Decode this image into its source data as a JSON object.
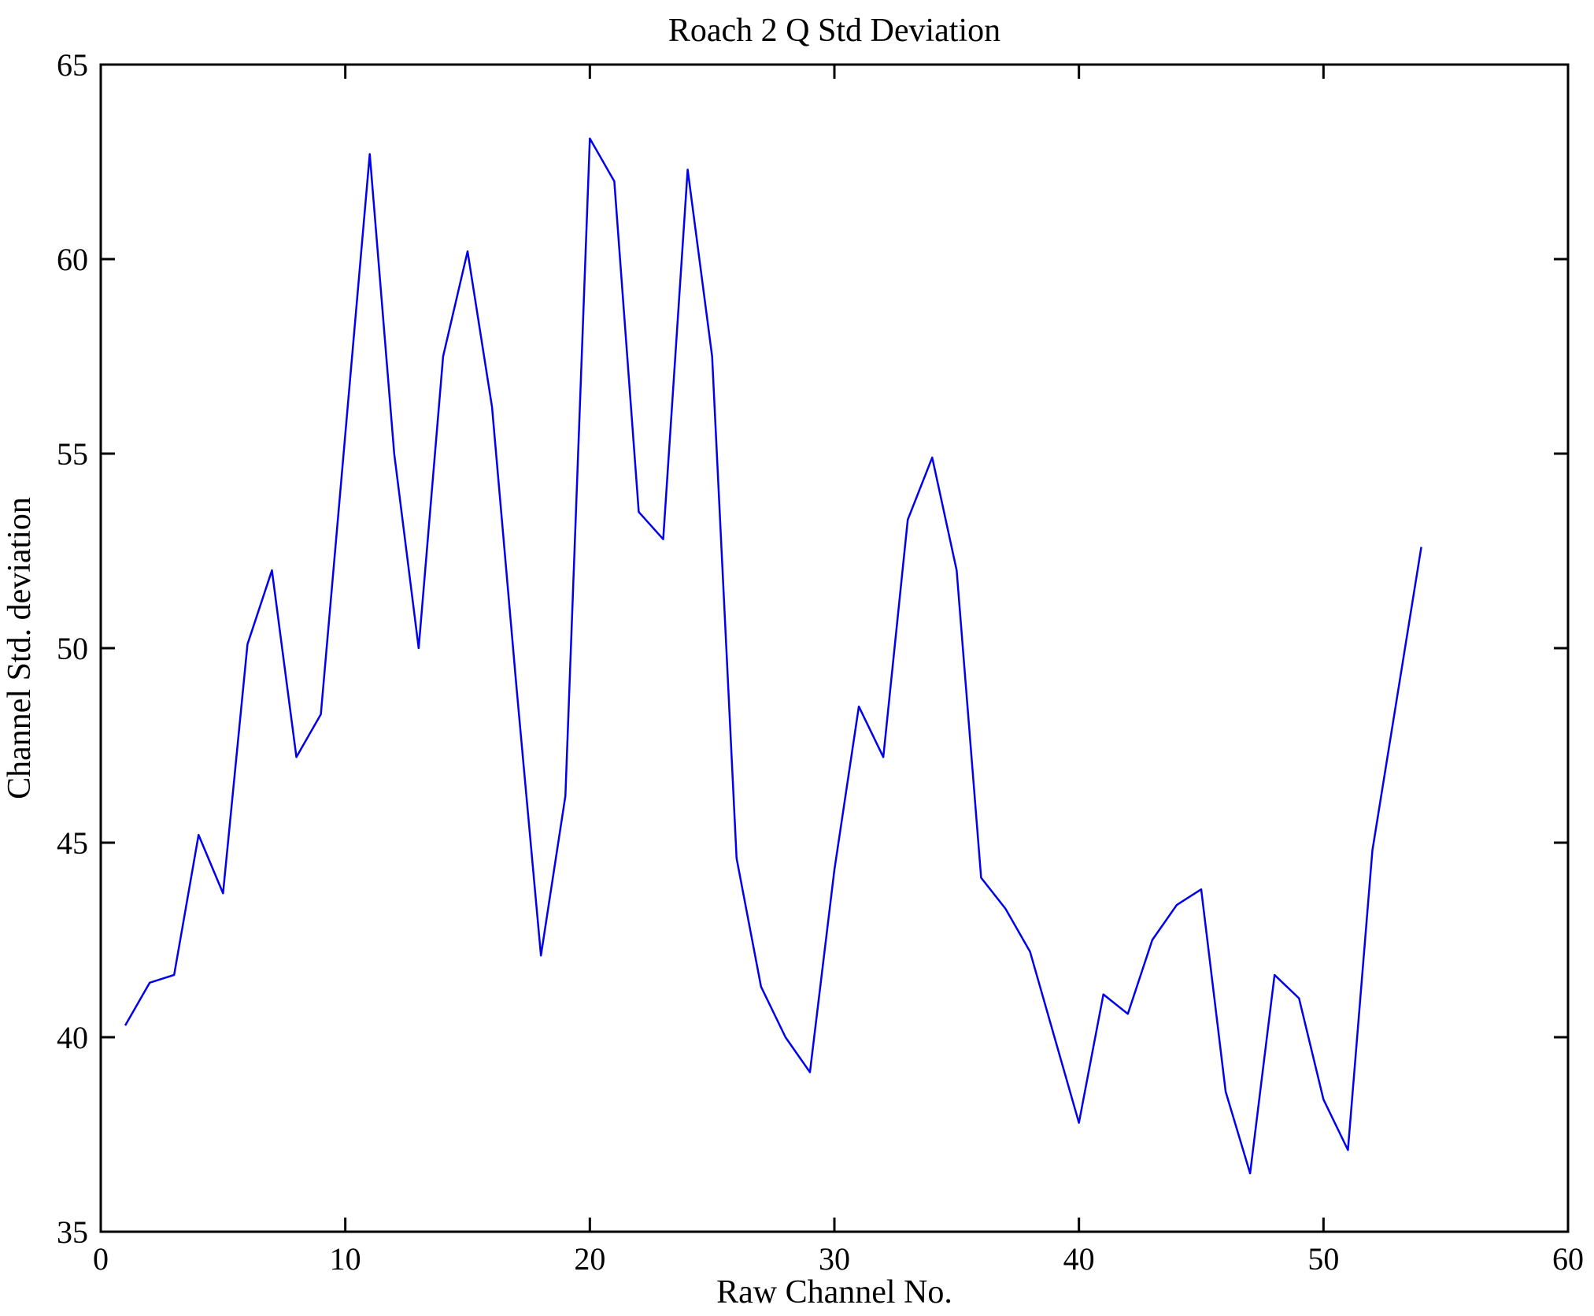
{
  "chart_data": {
    "type": "line",
    "title": "Roach 2 Q Std Deviation",
    "xlabel": "Raw Channel No.",
    "ylabel": "Channel Std. deviation",
    "xlim": [
      0,
      60
    ],
    "ylim": [
      35,
      65
    ],
    "xticks": [
      0,
      10,
      20,
      30,
      40,
      50,
      60
    ],
    "yticks": [
      35,
      40,
      45,
      50,
      55,
      60,
      65
    ],
    "grid": false,
    "legend_position": "none",
    "line_color": "#0000ee",
    "axis_color": "#000000",
    "background_color": "#ffffff",
    "x": [
      1,
      2,
      3,
      4,
      5,
      6,
      7,
      8,
      9,
      10,
      11,
      12,
      13,
      14,
      15,
      16,
      17,
      18,
      19,
      20,
      21,
      22,
      23,
      24,
      25,
      26,
      27,
      28,
      29,
      30,
      31,
      32,
      33,
      34,
      35,
      36,
      37,
      38,
      39,
      40,
      41,
      42,
      43,
      44,
      45,
      46,
      47,
      48,
      49,
      50,
      51,
      52,
      53,
      54
    ],
    "values": [
      40.3,
      41.4,
      41.6,
      45.2,
      43.7,
      50.1,
      52.0,
      47.2,
      48.3,
      55.5,
      62.7,
      55.0,
      50.0,
      57.5,
      60.2,
      56.2,
      49.0,
      42.1,
      46.2,
      63.1,
      62.0,
      53.5,
      52.8,
      62.3,
      57.5,
      44.6,
      41.3,
      40.0,
      39.1,
      44.3,
      48.5,
      47.2,
      53.3,
      54.9,
      52.0,
      44.1,
      43.3,
      42.2,
      40.0,
      37.8,
      41.1,
      40.6,
      42.5,
      43.4,
      43.8,
      38.6,
      36.5,
      41.6,
      41.0,
      38.4,
      37.1,
      44.8,
      48.7,
      52.6
    ]
  }
}
